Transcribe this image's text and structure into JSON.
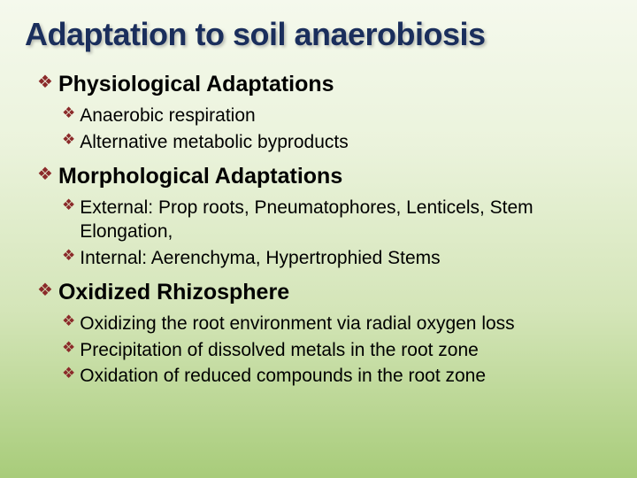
{
  "title": "Adaptation to soil anaerobiosis",
  "bullet_glyph": "❖",
  "bullet_color": "#8b2a2a",
  "title_color": "#1a2e5c",
  "background_gradient": [
    "#f5f9ed",
    "#ebf3dc",
    "#d4e5b8",
    "#a8cc7a"
  ],
  "sections": [
    {
      "heading": "Physiological Adaptations",
      "items": [
        "Anaerobic respiration",
        "Alternative metabolic byproducts"
      ]
    },
    {
      "heading": "Morphological Adaptations",
      "items": [
        "External:  Prop roots, Pneumatophores, Lenticels, Stem Elongation,",
        "Internal: Aerenchyma, Hypertrophied Stems"
      ]
    },
    {
      "heading": "Oxidized Rhizosphere",
      "items": [
        "Oxidizing the root environment via radial oxygen loss",
        "Precipitation of dissolved metals in the root zone",
        "Oxidation of reduced compounds in the root zone"
      ]
    }
  ]
}
